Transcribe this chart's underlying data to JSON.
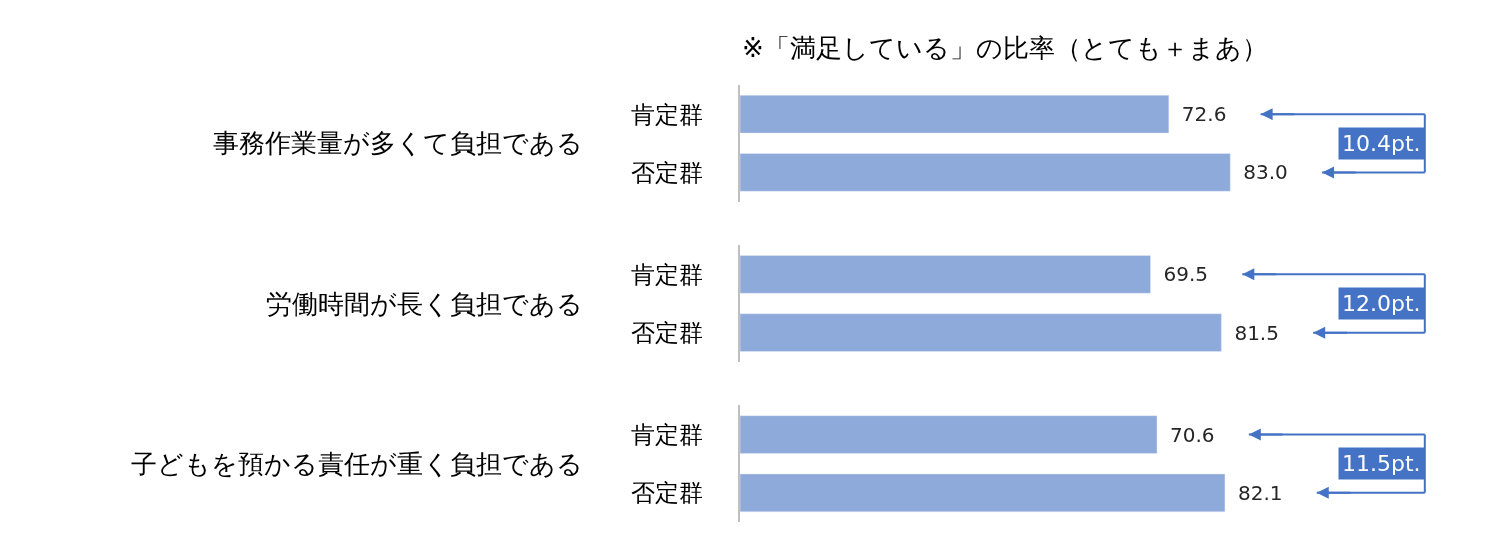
{
  "chart_data": [
    {
      "type": "bar",
      "orientation": "horizontal",
      "title": "※「満足している」の比率（とても＋まあ）",
      "ylabel": "事務作業量が多くて負担である",
      "categories": [
        "肯定群",
        "否定群"
      ],
      "values": [
        72.6,
        83.0
      ],
      "value_labels": [
        "72.6",
        "83.0"
      ],
      "color": "#8eaadb",
      "annotations": [
        "10.4pt."
      ]
    },
    {
      "type": "bar",
      "orientation": "horizontal",
      "ylabel": "労働時間が長く負担である",
      "categories": [
        "肯定群",
        "否定群"
      ],
      "values": [
        69.5,
        81.5
      ],
      "value_labels": [
        "69.5",
        "81.5"
      ],
      "color": "#8eaadb",
      "annotations": [
        "12.0pt."
      ]
    },
    {
      "type": "bar",
      "orientation": "horizontal",
      "ylabel": "子どもを預かる責任が重く負担である",
      "categories": [
        "肯定群",
        "否定群"
      ],
      "values": [
        70.6,
        82.1
      ],
      "value_labels": [
        "70.6",
        "82.1"
      ],
      "color": "#8eaadb",
      "annotations": [
        "11.5pt."
      ]
    }
  ]
}
